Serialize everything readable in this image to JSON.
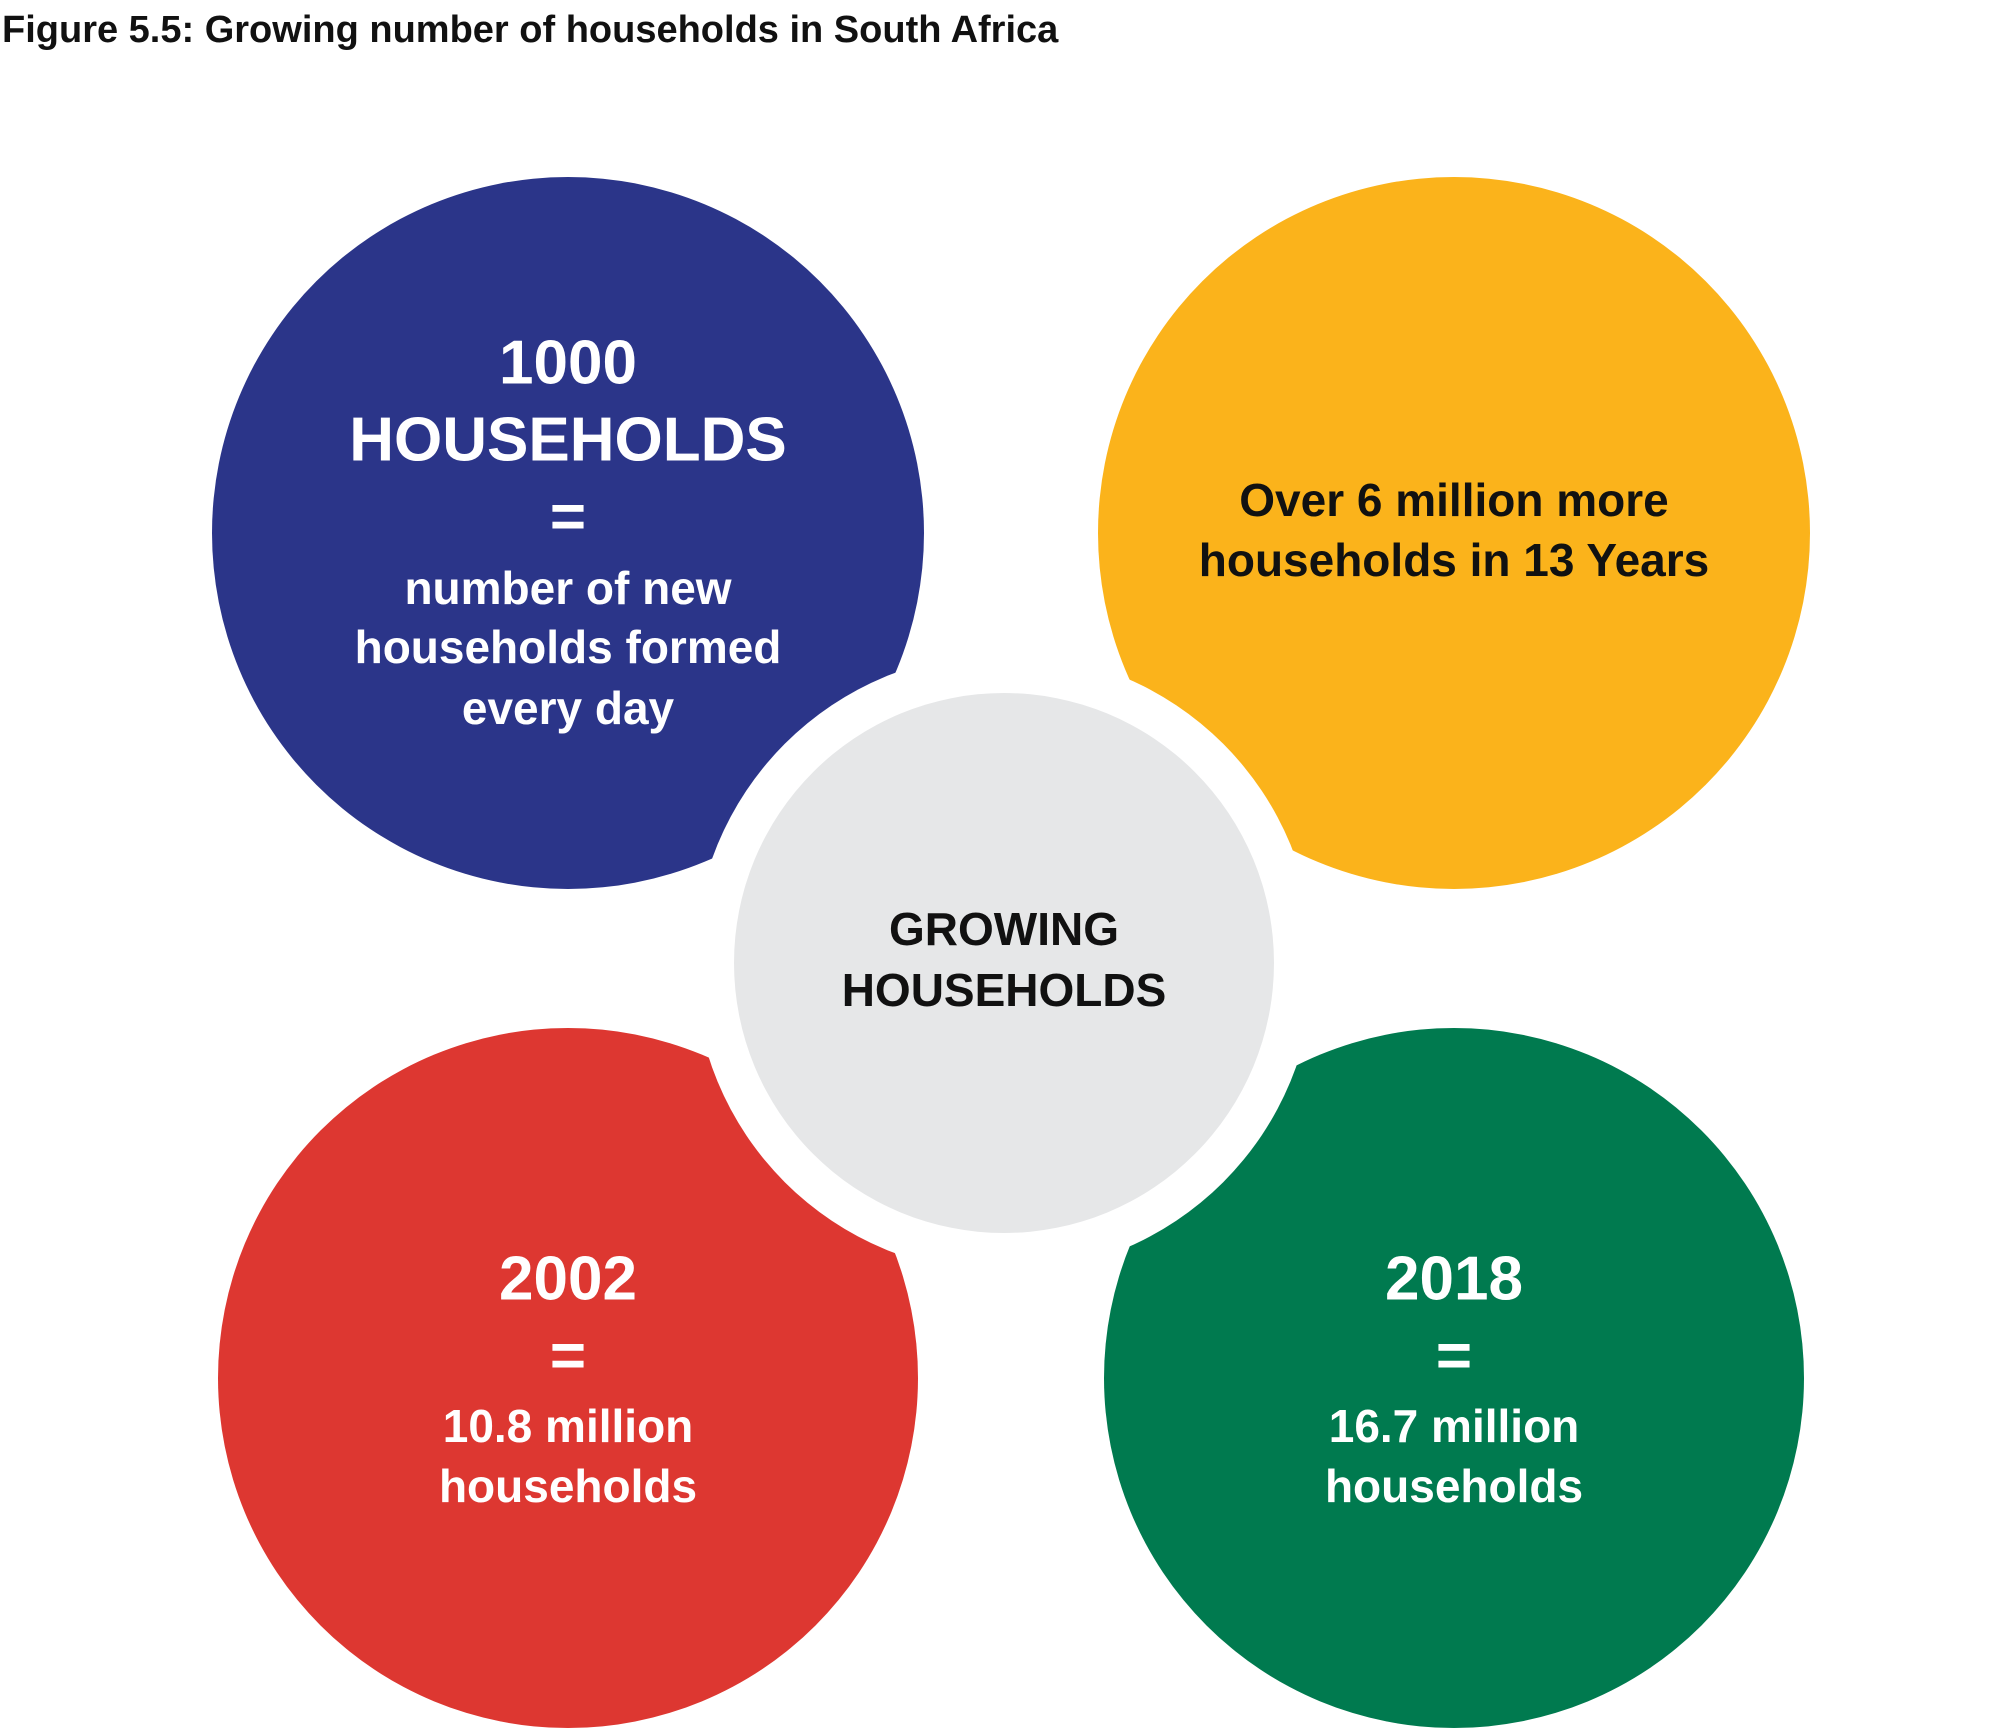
{
  "title": "Figure 5.5: Growing number of households in South Africa",
  "center": {
    "lines": [
      "GROWING",
      "HOUSEHOLDS"
    ]
  },
  "circles": [
    {
      "lines": [
        "1000",
        "HOUSEHOLDS",
        "=",
        "number of new",
        "households formed",
        "every day"
      ]
    },
    {
      "lines": [
        "Over 6 million more",
        "households in 13 Years"
      ]
    },
    {
      "lines": [
        "2002",
        "=",
        "10.8 million",
        "households"
      ]
    },
    {
      "lines": [
        "2018",
        "=",
        "16.7 million",
        "households"
      ]
    }
  ]
}
